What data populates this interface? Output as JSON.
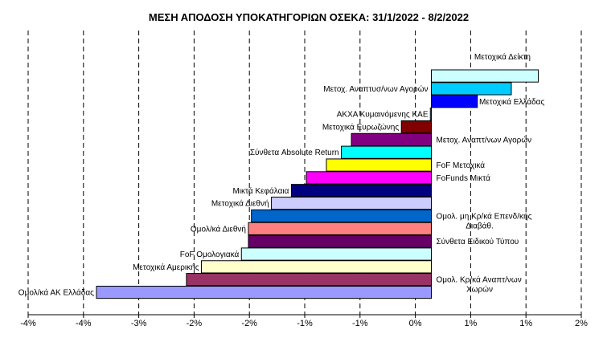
{
  "chart_data": {
    "type": "bar",
    "orientation": "horizontal",
    "title": "ΜΕΣΗ ΑΠΟΔΟΣΗ ΥΠΟΚΑΤΗΓΟΡΙΩΝ ΟΣΕΚΑ: 31/1/2022 - 8/2/2022",
    "xlim": [
      -4,
      2
    ],
    "x_ticks": [
      "-4%",
      "-4%",
      "-3%",
      "-2%",
      "-2%",
      "-1%",
      "-1%",
      "0%",
      "1%",
      "1%",
      "2%"
    ],
    "grid": "vertical dashed",
    "unit": "%",
    "bars": [
      {
        "label": "Μετοχικά Δείκτη",
        "lines": [
          "Μετοχικά Δείκτη"
        ],
        "value": 1.07,
        "color": "#ccffff"
      },
      {
        "label": "Μετοχ. Αναπτυσ/νων Αγορών",
        "lines": [
          "Μετοχ. Αναπτυσ/νων Αγορών"
        ],
        "value": 0.8,
        "color": "#00ccff"
      },
      {
        "label": "Μετοχικά Ελλάδας",
        "lines": [
          "Μετοχικά Ελλάδας"
        ],
        "value": 0.46,
        "color": "#0000ff"
      },
      {
        "label": "ΑΚΧΑ Κυμαινόμενης ΚΑΕ",
        "lines": [
          "ΑΚΧΑ Κυμαινόμενης ΚΑΕ"
        ],
        "value": -0.01,
        "color": "#99ccff"
      },
      {
        "label": "Μετοχικά Ευρωζώνης",
        "lines": [
          "Μετοχικά Ευρωζώνης"
        ],
        "value": -0.3,
        "color": "#800000"
      },
      {
        "label": "Μετοχ. Αναπτ/νων Αγορών",
        "lines": [
          "Μετοχ. Αναπτ/νων Αγορών"
        ],
        "value": -0.8,
        "color": "#800080"
      },
      {
        "label": "Σύνθετα Absolute Return",
        "lines": [
          "Σύνθετα Absolute Return"
        ],
        "value": -0.9,
        "color": "#00ffff"
      },
      {
        "label": "FoF Μετοχικά",
        "lines": [
          "FoF Μετοχικά"
        ],
        "value": -1.05,
        "color": "#ffff00"
      },
      {
        "label": "FoFunds Μικτά",
        "lines": [
          "FoFunds Μικτά"
        ],
        "value": -1.25,
        "color": "#ff00ff"
      },
      {
        "label": "Μικτά Κεφάλαια",
        "lines": [
          "Μικτά Κεφάλαια"
        ],
        "value": -1.4,
        "color": "#000080"
      },
      {
        "label": "Μετοχικά Διεθνή",
        "lines": [
          "Μετοχικά Διεθνή"
        ],
        "value": -1.6,
        "color": "#ccccff"
      },
      {
        "label": "Ομολ. μη Κρ/κά Επενδ/κής Διαβάθ.",
        "lines": [
          "Ομολ. μη Κρ/κά Επενδ/κής",
          "Διαβάθ."
        ],
        "value": -1.8,
        "color": "#0066cc"
      },
      {
        "label": "Ομολ/κά Διεθνή",
        "lines": [
          "Ομολ/κά Διεθνή"
        ],
        "value": -1.83,
        "color": "#ff8080"
      },
      {
        "label": "Σύνθετα Ειδικού Τύπου",
        "lines": [
          "Σύνθετα Ειδικού Τύπου"
        ],
        "value": -1.83,
        "color": "#660066"
      },
      {
        "label": "FoF Ομολογιακά",
        "lines": [
          "FoF Ομολογιακά"
        ],
        "value": -1.9,
        "color": "#ccffff"
      },
      {
        "label": "Μετοχικά Αμερικής",
        "lines": [
          "Μετοχικά Αμερικής"
        ],
        "value": -2.3,
        "color": "#ffffcc"
      },
      {
        "label": "Ομολ. Κρ/κά Αναπτ/νων Χωρών",
        "lines": [
          "Ομολ. Κρ/κά Αναπτ/νων",
          "Χωρών"
        ],
        "value": -2.45,
        "color": "#993366"
      },
      {
        "label": "Ομολ/κά ΑΚ Ελλάδας",
        "lines": [
          "Ομολ/κά ΑΚ Ελλάδας"
        ],
        "value": -3.35,
        "color": "#9999ff"
      }
    ]
  }
}
